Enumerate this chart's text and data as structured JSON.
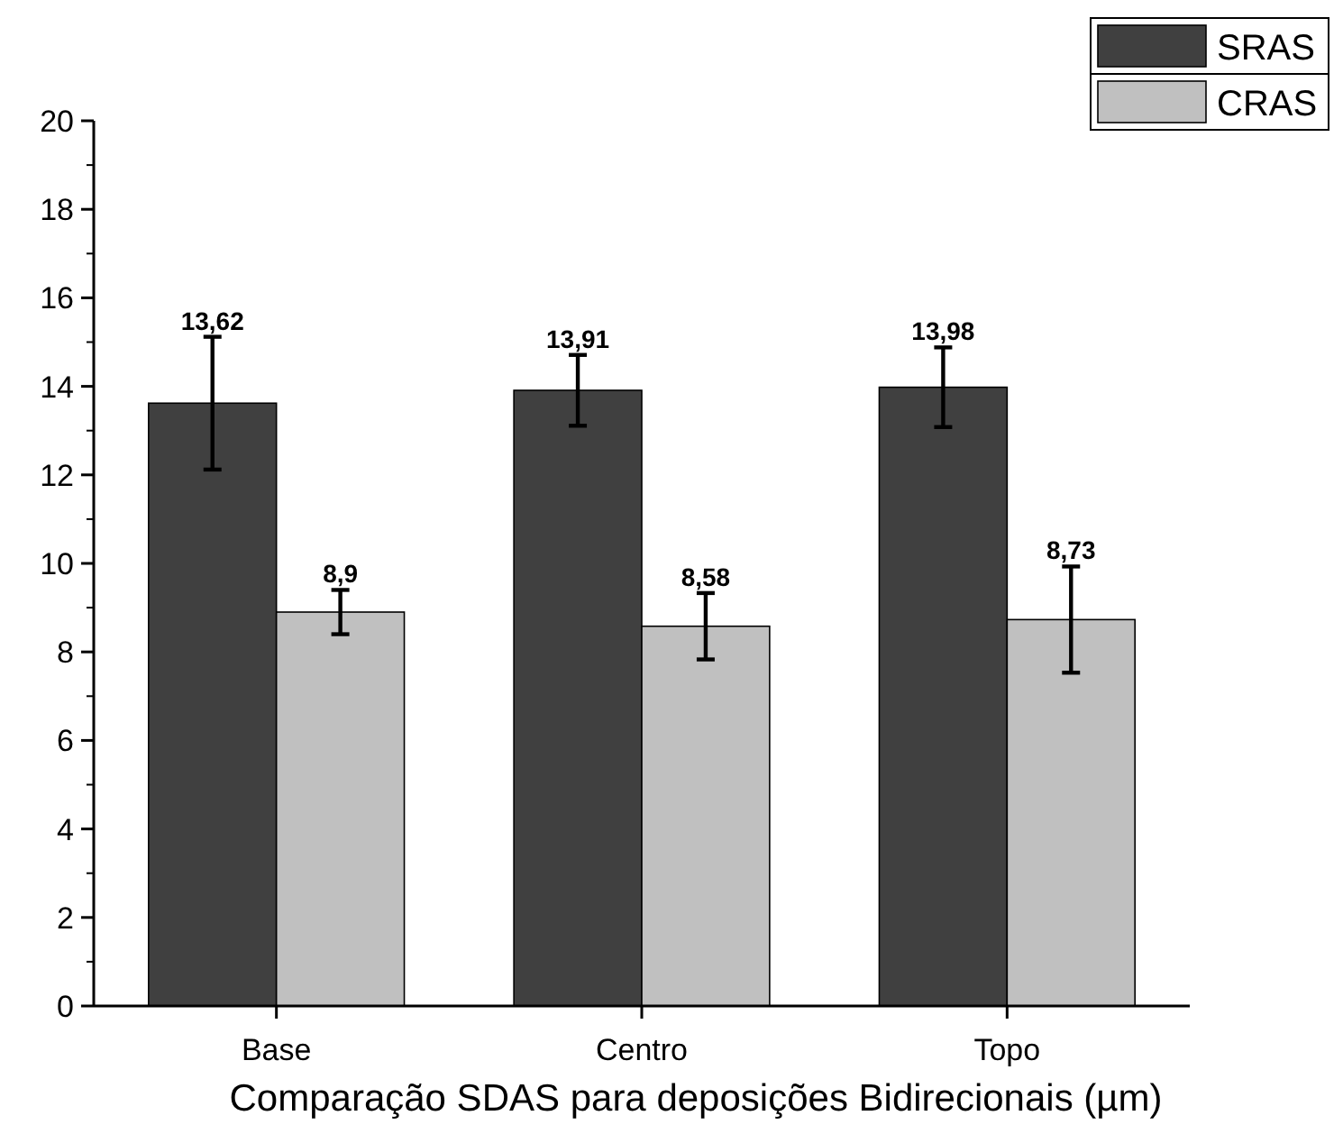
{
  "chart_data": {
    "type": "bar",
    "xlabel": "Comparação SDAS para deposições Bidirecionais (µm)",
    "categories": [
      "Base",
      "Centro",
      "Topo"
    ],
    "series": [
      {
        "name": "SRAS",
        "color": "#404040",
        "values": [
          13.62,
          13.91,
          13.98
        ],
        "errors": [
          1.5,
          0.8,
          0.9
        ],
        "value_labels": [
          "13,62",
          "13,91",
          "13,98"
        ]
      },
      {
        "name": "CRAS",
        "color": "#c0c0c0",
        "values": [
          8.9,
          8.58,
          8.73
        ],
        "errors": [
          0.5,
          0.75,
          1.2
        ],
        "value_labels": [
          "8,9",
          "8,58",
          "8,73"
        ]
      }
    ],
    "ylim": [
      0,
      20
    ],
    "yticks": [
      0,
      2,
      4,
      6,
      8,
      10,
      12,
      14,
      16,
      18,
      20
    ],
    "grid": false,
    "legend": "top right"
  }
}
